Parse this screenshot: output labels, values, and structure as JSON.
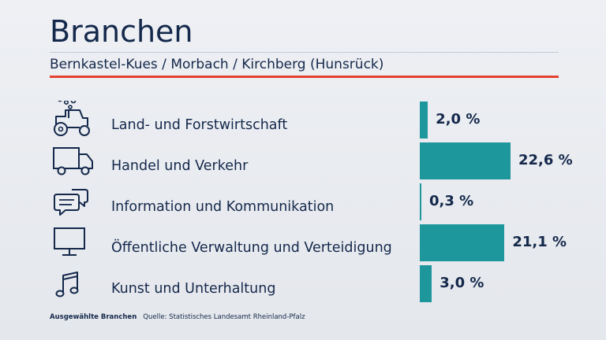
{
  "header": {
    "title": "Branchen",
    "subtitle": "Bernkastel-Kues / Morbach / Kirchberg (Hunsrück)"
  },
  "colors": {
    "bar": "#1e979c",
    "accent_rule": "#e4412f",
    "text": "#14284b"
  },
  "chart_data": {
    "type": "bar",
    "orientation": "horizontal",
    "categories": [
      "Land- und Forstwirtschaft",
      "Handel und Verkehr",
      "Information und Kommunikation",
      "Öffentliche Verwaltung und Verteidigung",
      "Kunst und Unterhaltung"
    ],
    "values": [
      2.0,
      22.6,
      0.3,
      21.1,
      3.0
    ],
    "value_labels": [
      "2,0 %",
      "22,6 %",
      "0,3 %",
      "21,1 %",
      "3,0 %"
    ],
    "icons": [
      "tractor-icon",
      "truck-icon",
      "speech-bubbles-icon",
      "monitor-icon",
      "music-note-icon"
    ],
    "title": "Branchen"
  },
  "footer": {
    "label": "Ausgewählte Branchen",
    "source": "Quelle: Statistisches Landesamt Rheinland-Pfalz"
  }
}
